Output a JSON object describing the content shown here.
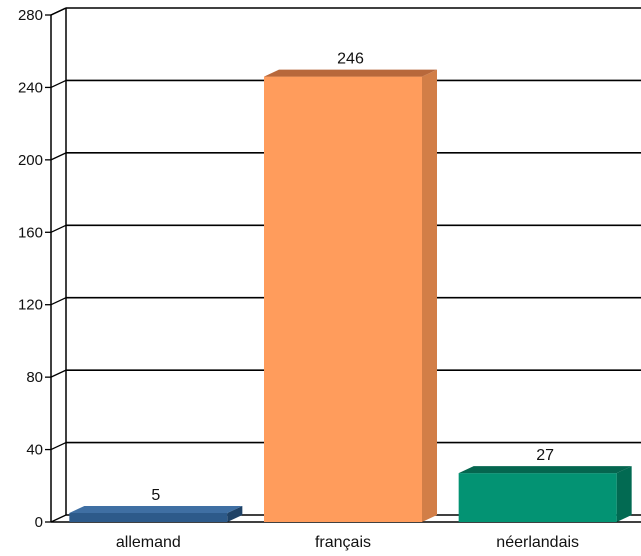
{
  "chart_data": {
    "type": "bar",
    "categories": [
      "allemand",
      "français",
      "néerlandais"
    ],
    "values": [
      5,
      246,
      27
    ],
    "value_labels": [
      "5",
      "246",
      "27"
    ],
    "ylim": [
      0,
      280
    ],
    "y_ticks": [
      0,
      40,
      80,
      120,
      160,
      200,
      240,
      280
    ],
    "y_tick_labels": [
      "0",
      "40",
      "80",
      "120",
      "160",
      "200",
      "240",
      "280"
    ],
    "grid": true,
    "style": "3d",
    "colors": [
      {
        "front": "#2D5A8A",
        "top": "#3F6FA3",
        "side": "#1F4266"
      },
      {
        "front": "#FF9C5C",
        "top": "#B8683B",
        "side": "#D27E47"
      },
      {
        "front": "#039373",
        "top": "#05664F",
        "side": "#026A52"
      }
    ]
  }
}
